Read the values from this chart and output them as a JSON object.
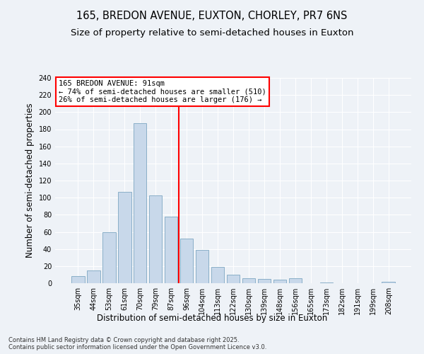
{
  "title": "165, BREDON AVENUE, EUXTON, CHORLEY, PR7 6NS",
  "subtitle": "Size of property relative to semi-detached houses in Euxton",
  "xlabel": "Distribution of semi-detached houses by size in Euxton",
  "ylabel": "Number of semi-detached properties",
  "bins": [
    "35sqm",
    "44sqm",
    "53sqm",
    "61sqm",
    "70sqm",
    "79sqm",
    "87sqm",
    "96sqm",
    "104sqm",
    "113sqm",
    "122sqm",
    "130sqm",
    "139sqm",
    "148sqm",
    "156sqm",
    "165sqm",
    "173sqm",
    "182sqm",
    "191sqm",
    "199sqm",
    "208sqm"
  ],
  "values": [
    8,
    15,
    60,
    107,
    187,
    103,
    78,
    52,
    39,
    19,
    10,
    6,
    5,
    4,
    6,
    0,
    1,
    0,
    0,
    0,
    2
  ],
  "bar_color": "#c8d8ea",
  "bar_edge_color": "#8aafc8",
  "vline_x": 6.5,
  "vline_color": "red",
  "annotation_text": "165 BREDON AVENUE: 91sqm\n← 74% of semi-detached houses are smaller (510)\n26% of semi-detached houses are larger (176) →",
  "annotation_box_color": "white",
  "annotation_box_edge_color": "red",
  "ylim": [
    0,
    240
  ],
  "yticks": [
    0,
    20,
    40,
    60,
    80,
    100,
    120,
    140,
    160,
    180,
    200,
    220,
    240
  ],
  "footer_text": "Contains HM Land Registry data © Crown copyright and database right 2025.\nContains public sector information licensed under the Open Government Licence v3.0.",
  "bg_color": "#eef2f7",
  "title_fontsize": 10.5,
  "subtitle_fontsize": 9.5,
  "label_fontsize": 8.5,
  "tick_fontsize": 7,
  "annot_fontsize": 7.5,
  "footer_fontsize": 6
}
